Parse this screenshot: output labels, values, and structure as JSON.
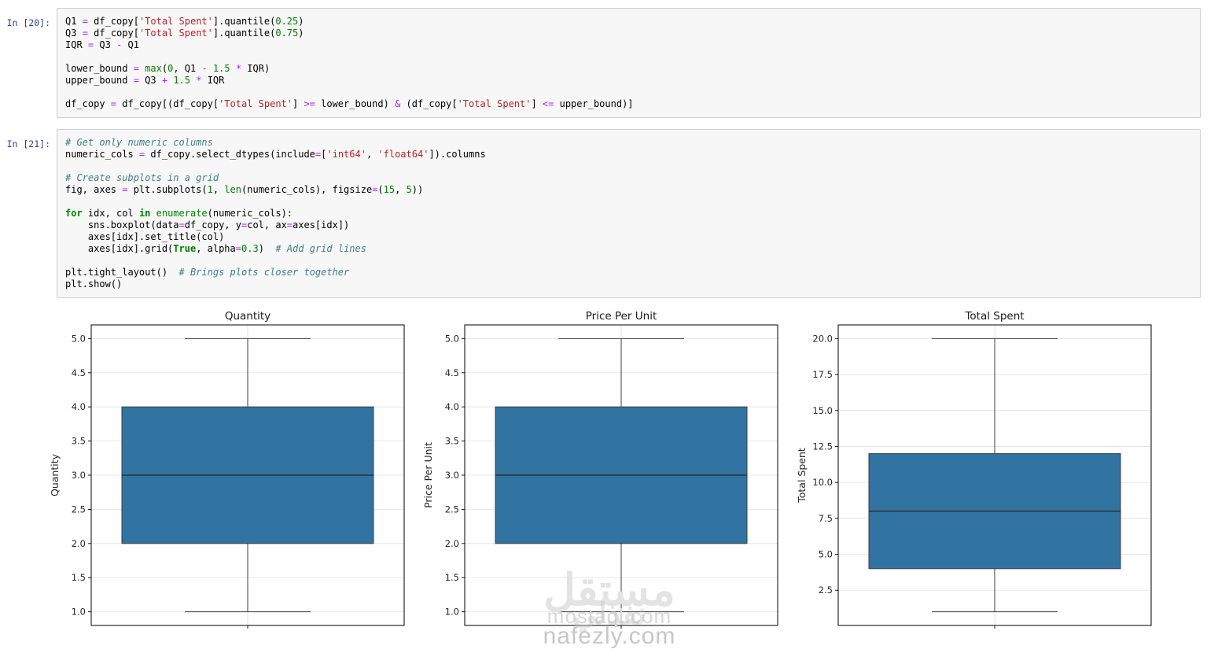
{
  "colors": {
    "prompt_text": "#303f9f",
    "cell_background": "#f7f7f7",
    "cell_border": "#cfcfcf",
    "box_fill": "#3274a1",
    "string_token": "#ba2121",
    "keyword_token": "#008000",
    "comment_token": "#408080",
    "operator_token": "#aa22ff"
  },
  "notebook": {
    "cells": [
      {
        "prompt": "In [20]:",
        "lines": [
          [
            [
              "v",
              "Q1 "
            ],
            [
              "o",
              "="
            ],
            [
              "v",
              " df_copy["
            ],
            [
              "s",
              "'Total Spent'"
            ],
            [
              "v",
              "].quantile("
            ],
            [
              "n",
              "0.25"
            ],
            [
              "v",
              ")"
            ]
          ],
          [
            [
              "v",
              "Q3 "
            ],
            [
              "o",
              "="
            ],
            [
              "v",
              " df_copy["
            ],
            [
              "s",
              "'Total Spent'"
            ],
            [
              "v",
              "].quantile("
            ],
            [
              "n",
              "0.75"
            ],
            [
              "v",
              ")"
            ]
          ],
          [
            [
              "v",
              "IQR "
            ],
            [
              "o",
              "="
            ],
            [
              "v",
              " Q3 "
            ],
            [
              "o",
              "-"
            ],
            [
              "v",
              " Q1"
            ]
          ],
          [],
          [
            [
              "v",
              "lower_bound "
            ],
            [
              "o",
              "="
            ],
            [
              "v",
              " "
            ],
            [
              "b",
              "max"
            ],
            [
              "v",
              "("
            ],
            [
              "n",
              "0"
            ],
            [
              "v",
              ", Q1 "
            ],
            [
              "o",
              "-"
            ],
            [
              "v",
              " "
            ],
            [
              "n",
              "1.5"
            ],
            [
              "v",
              " "
            ],
            [
              "o",
              "*"
            ],
            [
              "v",
              " IQR)"
            ]
          ],
          [
            [
              "v",
              "upper_bound "
            ],
            [
              "o",
              "="
            ],
            [
              "v",
              " Q3 "
            ],
            [
              "o",
              "+"
            ],
            [
              "v",
              " "
            ],
            [
              "n",
              "1.5"
            ],
            [
              "v",
              " "
            ],
            [
              "o",
              "*"
            ],
            [
              "v",
              " IQR"
            ]
          ],
          [],
          [
            [
              "v",
              "df_copy "
            ],
            [
              "o",
              "="
            ],
            [
              "v",
              " df_copy[(df_copy["
            ],
            [
              "s",
              "'Total Spent'"
            ],
            [
              "v",
              "] "
            ],
            [
              "o",
              ">="
            ],
            [
              "v",
              " lower_bound) "
            ],
            [
              "o",
              "&"
            ],
            [
              "v",
              " (df_copy["
            ],
            [
              "s",
              "'Total Spent'"
            ],
            [
              "v",
              "] "
            ],
            [
              "o",
              "<="
            ],
            [
              "v",
              " upper_bound)]"
            ]
          ]
        ]
      },
      {
        "prompt": "In [21]:",
        "lines": [
          [
            [
              "c",
              "# Get only numeric columns"
            ]
          ],
          [
            [
              "v",
              "numeric_cols "
            ],
            [
              "o",
              "="
            ],
            [
              "v",
              " df_copy.select_dtypes(include"
            ],
            [
              "o",
              "="
            ],
            [
              "v",
              "["
            ],
            [
              "s",
              "'int64'"
            ],
            [
              "v",
              ", "
            ],
            [
              "s",
              "'float64'"
            ],
            [
              "v",
              "]).columns"
            ]
          ],
          [],
          [
            [
              "c",
              "# Create subplots in a grid"
            ]
          ],
          [
            [
              "v",
              "fig, axes "
            ],
            [
              "o",
              "="
            ],
            [
              "v",
              " plt.subplots("
            ],
            [
              "n",
              "1"
            ],
            [
              "v",
              ", "
            ],
            [
              "b",
              "len"
            ],
            [
              "v",
              "(numeric_cols), figsize"
            ],
            [
              "o",
              "="
            ],
            [
              "v",
              "("
            ],
            [
              "n",
              "15"
            ],
            [
              "v",
              ", "
            ],
            [
              "n",
              "5"
            ],
            [
              "v",
              "))"
            ]
          ],
          [],
          [
            [
              "k",
              "for"
            ],
            [
              "v",
              " idx, col "
            ],
            [
              "k",
              "in"
            ],
            [
              "v",
              " "
            ],
            [
              "b",
              "enumerate"
            ],
            [
              "v",
              "(numeric_cols):"
            ]
          ],
          [
            [
              "v",
              "    sns.boxplot(data"
            ],
            [
              "o",
              "="
            ],
            [
              "v",
              "df_copy, y"
            ],
            [
              "o",
              "="
            ],
            [
              "v",
              "col, ax"
            ],
            [
              "o",
              "="
            ],
            [
              "v",
              "axes[idx])"
            ]
          ],
          [
            [
              "v",
              "    axes[idx].set_title(col)"
            ]
          ],
          [
            [
              "v",
              "    axes[idx].grid("
            ],
            [
              "k",
              "True"
            ],
            [
              "v",
              ", alpha"
            ],
            [
              "o",
              "="
            ],
            [
              "n",
              "0.3"
            ],
            [
              "v",
              ")  "
            ],
            [
              "c",
              "# Add grid lines"
            ]
          ],
          [],
          [
            [
              "v",
              "plt.tight_layout()  "
            ],
            [
              "c",
              "# Brings plots closer together"
            ]
          ],
          [
            [
              "v",
              "plt.show()"
            ]
          ]
        ]
      }
    ]
  },
  "chart_data": [
    {
      "type": "boxplot",
      "title": "Quantity",
      "ylabel": "Quantity",
      "ylim": [
        0.8,
        5.2
      ],
      "yticks": [
        1.0,
        1.5,
        2.0,
        2.5,
        3.0,
        3.5,
        4.0,
        4.5,
        5.0
      ],
      "stats": {
        "whisker_low": 1.0,
        "q1": 2.0,
        "median": 3.0,
        "q3": 4.0,
        "whisker_high": 5.0
      },
      "grid": true,
      "box_color": "#3274a1"
    },
    {
      "type": "boxplot",
      "title": "Price Per Unit",
      "ylabel": "Price Per Unit",
      "ylim": [
        0.8,
        5.2
      ],
      "yticks": [
        1.0,
        1.5,
        2.0,
        2.5,
        3.0,
        3.5,
        4.0,
        4.5,
        5.0
      ],
      "stats": {
        "whisker_low": 1.0,
        "q1": 2.0,
        "median": 3.0,
        "q3": 4.0,
        "whisker_high": 5.0
      },
      "grid": true,
      "box_color": "#3274a1"
    },
    {
      "type": "boxplot",
      "title": "Total Spent",
      "ylabel": "Total Spent",
      "ylim": [
        0.05,
        20.95
      ],
      "yticks": [
        2.5,
        5.0,
        7.5,
        10.0,
        12.5,
        15.0,
        17.5,
        20.0
      ],
      "stats": {
        "whisker_low": 1.0,
        "q1": 4.0,
        "median": 8.0,
        "q3": 12.0,
        "whisker_high": 20.0
      },
      "grid": true,
      "box_color": "#3274a1"
    }
  ],
  "watermark": {
    "arabic": "مستقل",
    "latin": "mostaql.com",
    "arabic2": "نفذلي",
    "latin2": "nafezly.com"
  }
}
